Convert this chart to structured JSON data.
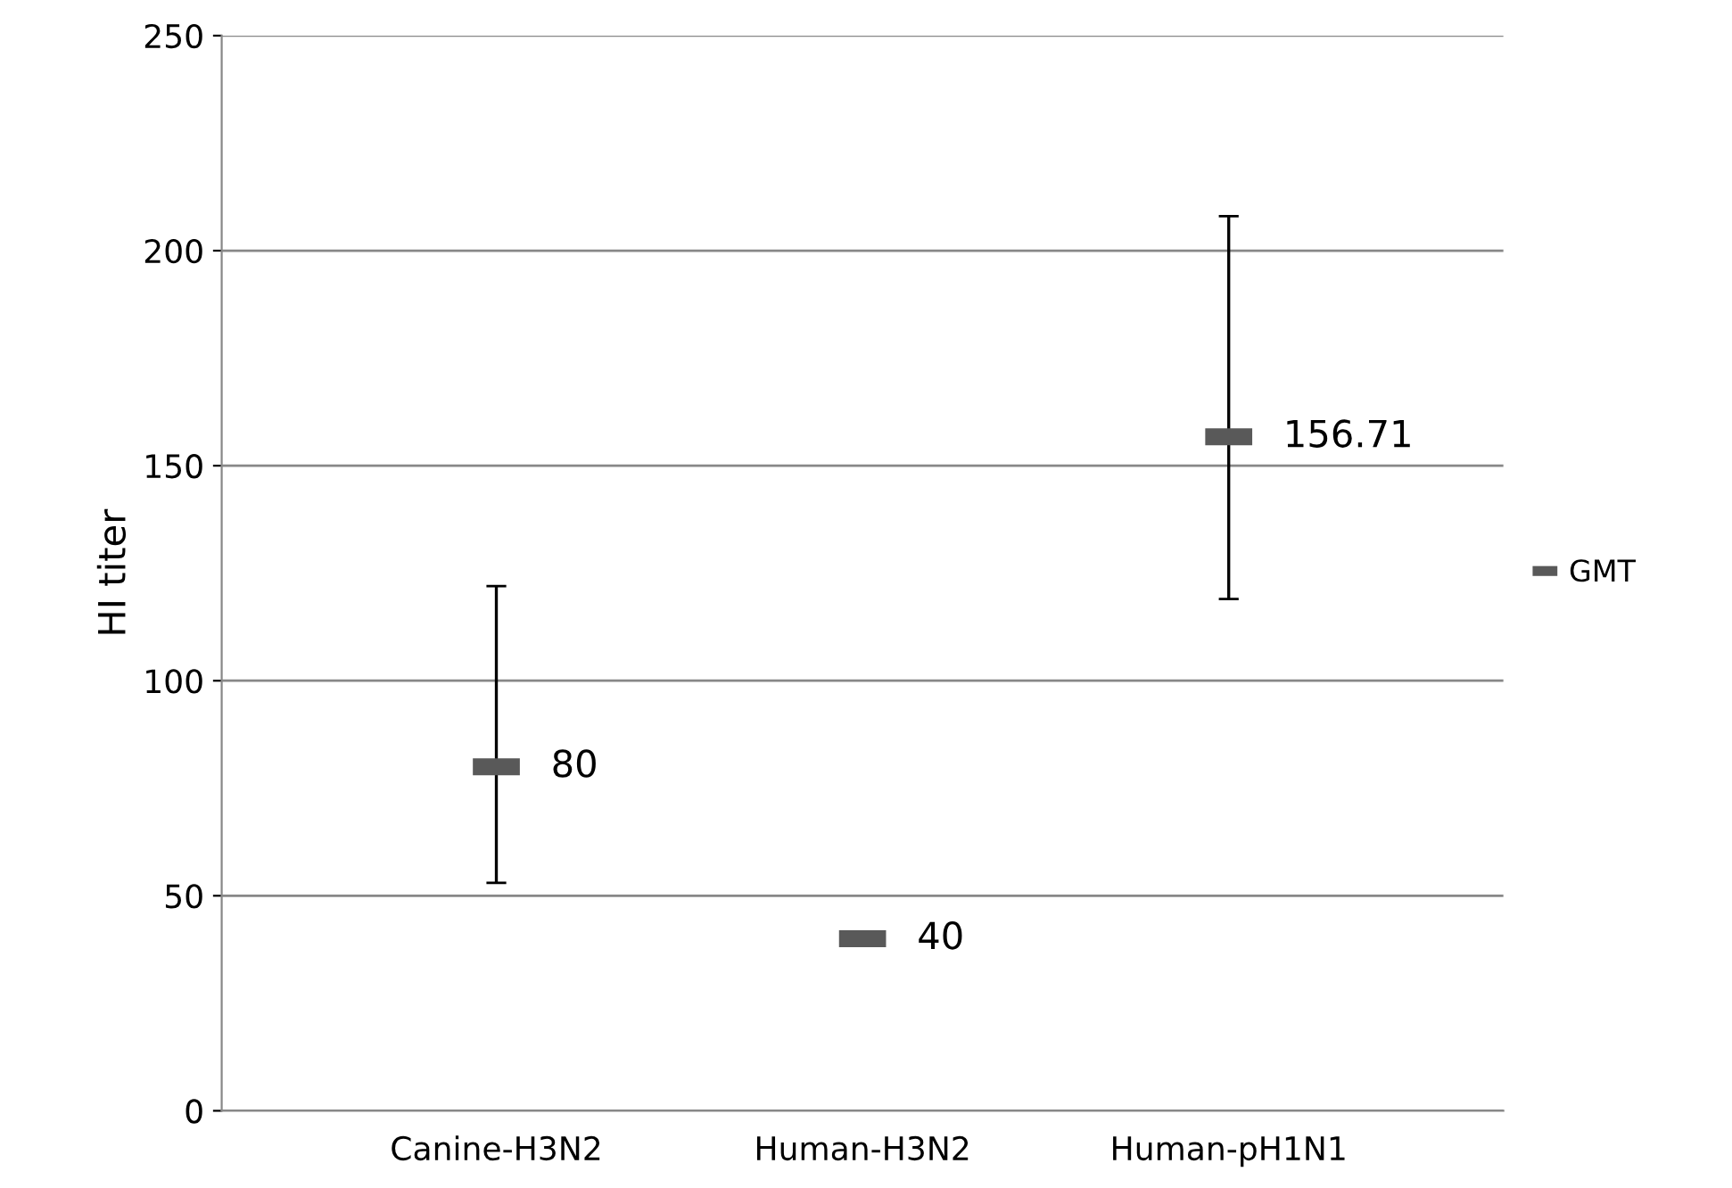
{
  "chart_data": {
    "type": "scatter",
    "ylabel": "HI titer",
    "categories": [
      "Canine-H3N2",
      "Human-H3N2",
      "Human-pH1N1"
    ],
    "series": [
      {
        "name": "GMT",
        "color": "#595959",
        "values": [
          80,
          40,
          156.71
        ],
        "errors": [
          [
            53,
            122
          ],
          null,
          [
            119,
            208
          ]
        ]
      }
    ],
    "ylim": [
      0,
      250
    ],
    "yticks": [
      0,
      50,
      100,
      150,
      200,
      250
    ],
    "grid": "y",
    "legend": "right",
    "data_labels": true
  }
}
